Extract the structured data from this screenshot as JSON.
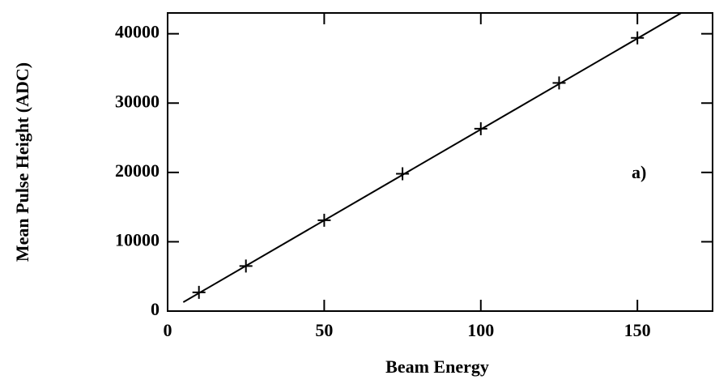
{
  "chart_data": {
    "type": "scatter",
    "xlabel": "Beam Energy",
    "ylabel": "Mean Pulse Height (ADC)",
    "annotation": "a)",
    "x": [
      10,
      25,
      50,
      75,
      100,
      125,
      150
    ],
    "values": [
      2700,
      6500,
      13100,
      19800,
      26300,
      32900,
      39400
    ],
    "fit": {
      "x": [
        5,
        164
      ],
      "values": [
        1280,
        43000
      ]
    },
    "color": "#000000",
    "xlim": [
      0,
      174
    ],
    "xticks": [
      0,
      50,
      100,
      150
    ],
    "ylim": [
      0,
      43000
    ],
    "yticks": [
      0,
      10000,
      20000,
      30000,
      40000
    ]
  }
}
